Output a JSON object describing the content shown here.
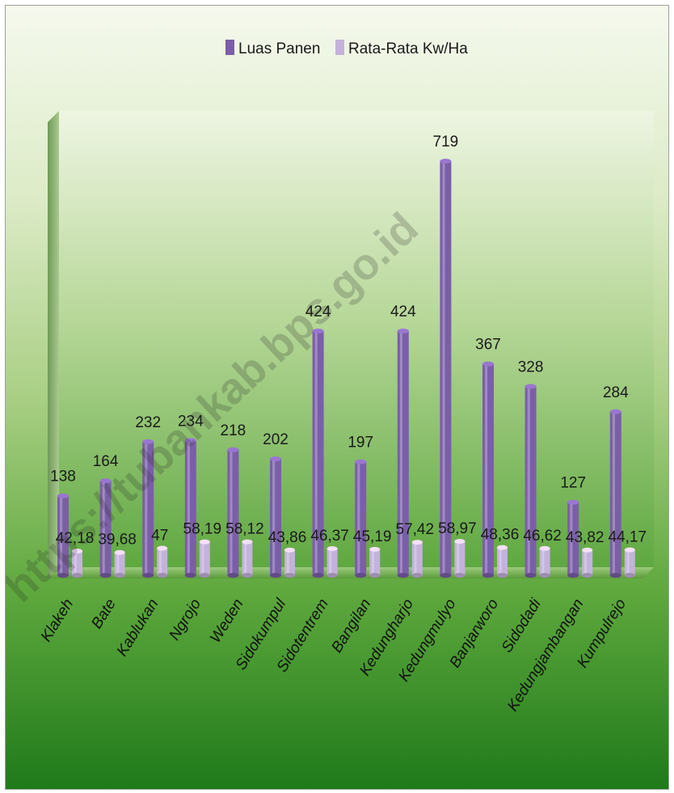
{
  "chart_data": {
    "type": "bar",
    "title": "",
    "xlabel": "",
    "ylabel": "",
    "ylim": [
      0,
      800
    ],
    "grid": false,
    "legend": "top",
    "categories": [
      "Klakeh",
      "Bate",
      "Kablukan",
      "Ngrojo",
      "Weden",
      "Sidokumpul",
      "Sidotentrem",
      "Bangilan",
      "Kedungharjo",
      "Kedungmulyo",
      "Banjarworo",
      "Sidodadi",
      "Kedungjambangan",
      "Kumpulrejo"
    ],
    "series": [
      {
        "name": "Luas Panen",
        "color": "#7b5ea8",
        "values": [
          138,
          164,
          232,
          234,
          218,
          202,
          424,
          197,
          424,
          719,
          367,
          328,
          127,
          284
        ],
        "labels": [
          "138",
          "164",
          "232",
          "234",
          "218",
          "202",
          "424",
          "197",
          "424",
          "719",
          "367",
          "328",
          "127",
          "284"
        ]
      },
      {
        "name": "Rata-Rata Kw/Ha",
        "color": "#c4b2dc",
        "values": [
          42.18,
          39.68,
          47,
          58.19,
          58.12,
          43.86,
          46.37,
          45.19,
          57.42,
          58.97,
          48.36,
          46.62,
          43.82,
          44.17
        ],
        "labels": [
          "42,18",
          "39,68",
          "47",
          "58,19",
          "58,12",
          "43,86",
          "46,37",
          "45,19",
          "57,42",
          "58,97",
          "48,36",
          "46,62",
          "43,82",
          "44,17"
        ]
      }
    ]
  },
  "watermark": "https://tubankab.bps.go.id"
}
